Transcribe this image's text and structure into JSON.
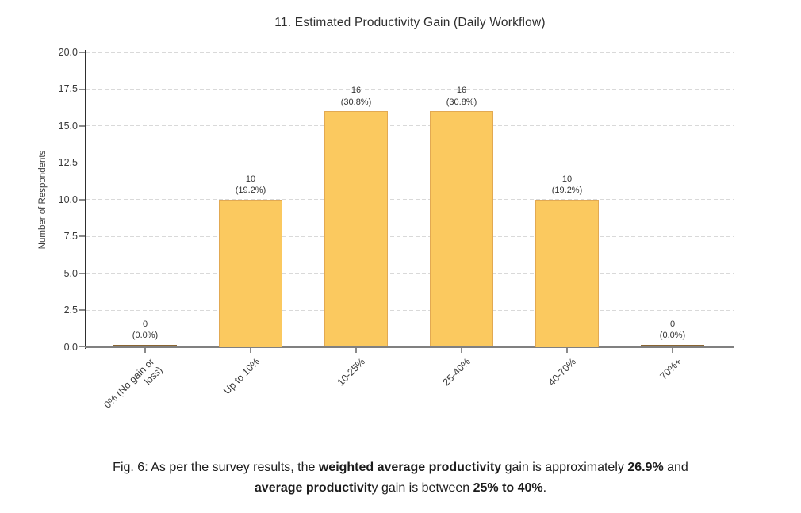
{
  "chart_data": {
    "type": "bar",
    "title": "11. Estimated Productivity Gain (Daily Workflow)",
    "ylabel": "Number of Respondents",
    "xlabel": "",
    "categories": [
      "0% (No gain or\nloss)",
      "Up to 10%",
      "10-25%",
      "25-40%",
      "40-70%",
      "70%+"
    ],
    "values": [
      0,
      10,
      16,
      16,
      10,
      0
    ],
    "bar_labels": [
      "0\n(0.0%)",
      "10\n(19.2%)",
      "16\n(30.8%)",
      "16\n(30.8%)",
      "10\n(19.2%)",
      "0\n(0.0%)"
    ],
    "ylim": [
      0,
      20
    ],
    "ytick_labels": [
      "0.0",
      "2.5",
      "5.0",
      "7.5",
      "10.0",
      "12.5",
      "15.0",
      "17.5",
      "20.0"
    ],
    "grid": "horizontal dashed, on",
    "legend": "none",
    "bar_color": "#FBC95F",
    "bar_edge_color": "#E2A952",
    "zero_bar_color": "#8a6532"
  },
  "caption": {
    "line1": [
      {
        "text": "Fig. 6: As per the survey results, the ",
        "bold": false
      },
      {
        "text": "weighted average productivity",
        "bold": true
      },
      {
        "text": " gain is approximately ",
        "bold": false
      },
      {
        "text": "26.9%",
        "bold": true
      },
      {
        "text": " and",
        "bold": false
      }
    ],
    "line2": [
      {
        "text": "average productivit",
        "bold": true
      },
      {
        "text": "y gain is between ",
        "bold": false
      },
      {
        "text": "25% to 40%",
        "bold": true
      },
      {
        "text": ".",
        "bold": false
      }
    ]
  }
}
